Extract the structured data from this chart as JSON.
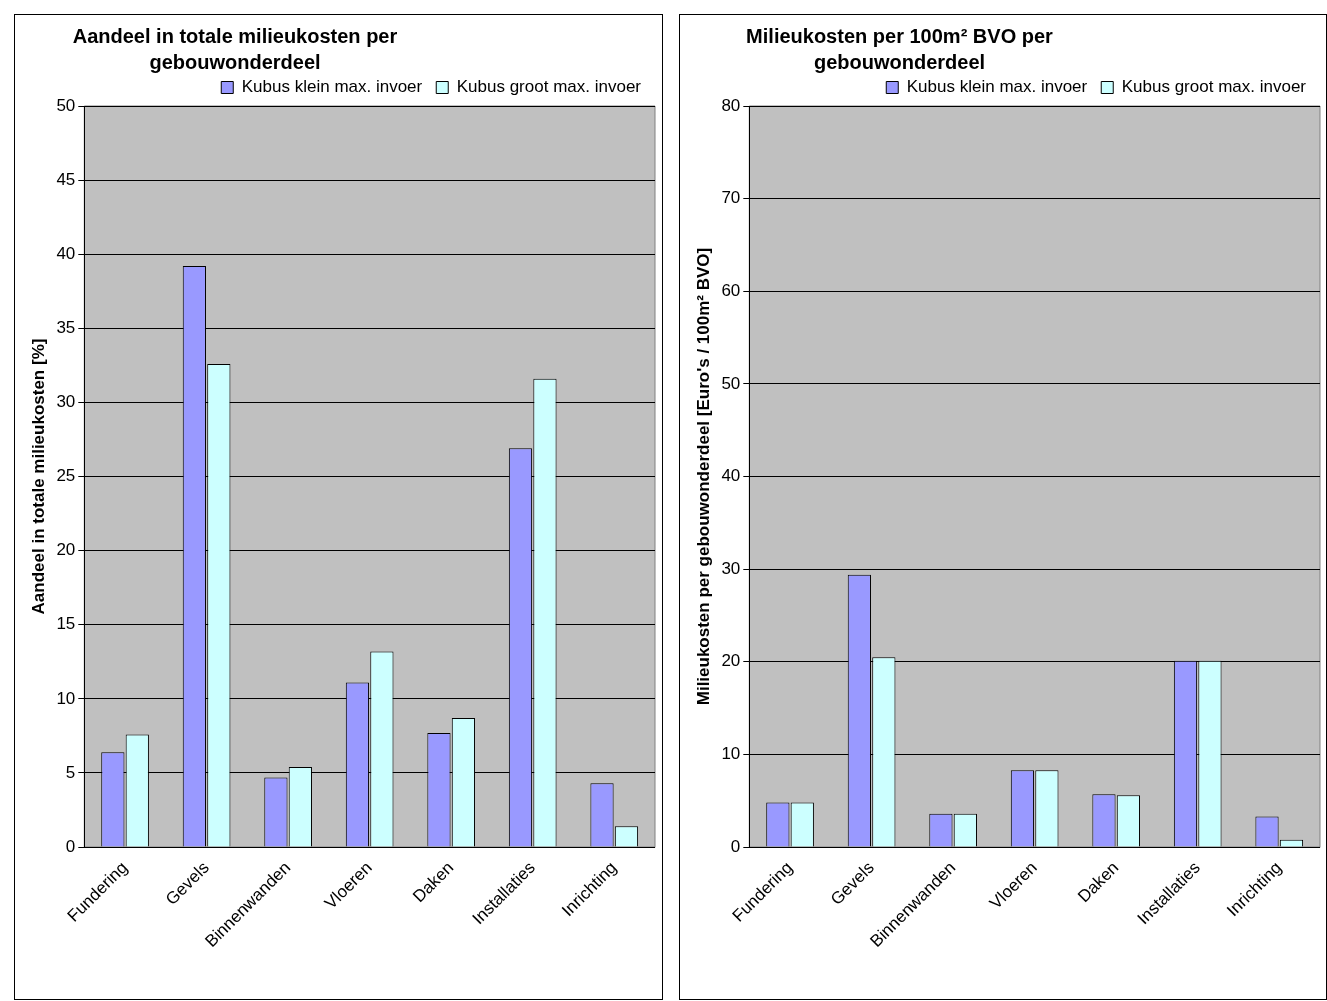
{
  "chart_data": [
    {
      "type": "bar",
      "title": "Aandeel in totale milieukosten per gebouwonderdeel",
      "ylabel": "Aandeel in totale milieukosten [%]",
      "categories": [
        "Fundering",
        "Gevels",
        "Binnenwanden",
        "Vloeren",
        "Daken",
        "Installaties",
        "Inrichting"
      ],
      "series": [
        {
          "name": "Kubus klein max. invoer",
          "color": "#9999ff",
          "values": [
            6.4,
            39.2,
            4.7,
            11.1,
            7.7,
            26.9,
            4.3
          ]
        },
        {
          "name": "Kubus groot max. invoer",
          "color": "#ccffff",
          "values": [
            7.6,
            32.6,
            5.4,
            13.2,
            8.7,
            31.6,
            1.4
          ]
        }
      ],
      "ylim": [
        0,
        50
      ],
      "yticks": [
        0,
        5,
        10,
        15,
        20,
        25,
        30,
        35,
        40,
        45,
        50
      ],
      "grid": "y",
      "legend": "top right"
    },
    {
      "type": "bar",
      "title": "Milieukosten per 100m² BVO per gebouwonderdeel",
      "ylabel": "Milieukosten per gebouwonderdeel [Euro's / 100m² BVO]",
      "categories": [
        "Fundering",
        "Gevels",
        "Binnenwanden",
        "Vloeren",
        "Daken",
        "Installaties",
        "Inrichting"
      ],
      "series": [
        {
          "name": "Kubus klein max. invoer",
          "color": "#9999ff",
          "values": [
            4.8,
            29.4,
            3.6,
            8.3,
            5.7,
            20.1,
            3.3
          ]
        },
        {
          "name": "Kubus groot max. invoer",
          "color": "#ccffff",
          "values": [
            4.8,
            20.5,
            3.6,
            8.3,
            5.6,
            20.1,
            0.8
          ]
        }
      ],
      "ylim": [
        0,
        80
      ],
      "yticks": [
        0,
        10,
        20,
        30,
        40,
        50,
        60,
        70,
        80
      ],
      "grid": "y",
      "legend": "top right"
    }
  ]
}
